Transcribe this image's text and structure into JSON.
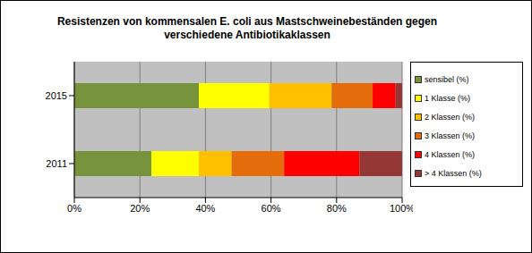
{
  "chart_data": {
    "type": "bar",
    "title": "Resistenzen von kommensalen E. coli aus Mastschweinebeständen gegen verschiedene Antibiotikaklassen",
    "orientation": "horizontal",
    "stacked": true,
    "grid": true,
    "legend": "right",
    "categories": [
      "2015",
      "2011"
    ],
    "series": [
      {
        "name": "sensibel (%)",
        "color": "#77933c",
        "values": [
          38,
          23.5
        ]
      },
      {
        "name": "1 Klasse (%)",
        "color": "#ffff00",
        "values": [
          21.5,
          14.5
        ]
      },
      {
        "name": "2 Klassen (%)",
        "color": "#ffc000",
        "values": [
          19,
          10
        ]
      },
      {
        "name": "3 Klassen (%)",
        "color": "#e46c0a",
        "values": [
          12.5,
          16
        ]
      },
      {
        "name": "4 Klassen (%)",
        "color": "#ff0000",
        "values": [
          7,
          23
        ]
      },
      {
        "name": "> 4 Klassen (%)",
        "color": "#953735",
        "values": [
          2,
          13
        ]
      }
    ],
    "xlim": [
      0,
      100
    ],
    "xticks": [
      {
        "value": 0,
        "label": "0%"
      },
      {
        "value": 20,
        "label": "20%"
      },
      {
        "value": 40,
        "label": "40%"
      },
      {
        "value": 60,
        "label": "60%"
      },
      {
        "value": 80,
        "label": "80%"
      },
      {
        "value": 100,
        "label": "100%"
      }
    ]
  }
}
